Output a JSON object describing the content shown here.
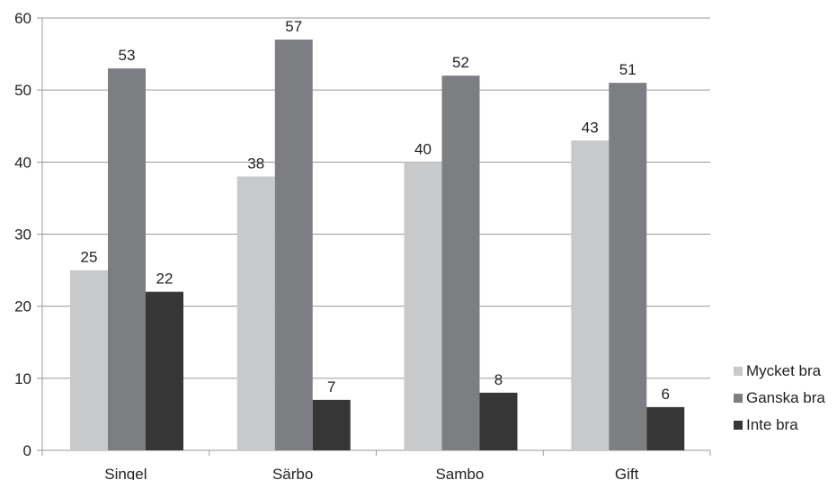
{
  "chart_data": {
    "type": "bar",
    "categories": [
      "Singel",
      "Särbo",
      "Sambo",
      "Gift"
    ],
    "series": [
      {
        "name": "Mycket bra",
        "values": [
          25,
          38,
          40,
          43
        ],
        "color": "#c8c9cb"
      },
      {
        "name": "Ganska bra",
        "values": [
          53,
          57,
          52,
          51
        ],
        "color": "#7d7e81"
      },
      {
        "name": "Inte bra",
        "values": [
          22,
          7,
          8,
          6
        ],
        "color": "#363636"
      }
    ],
    "ylim": [
      0,
      60
    ],
    "yticks": [
      0,
      10,
      20,
      30,
      40,
      50,
      60
    ],
    "grid": true,
    "legend_position": "right"
  }
}
